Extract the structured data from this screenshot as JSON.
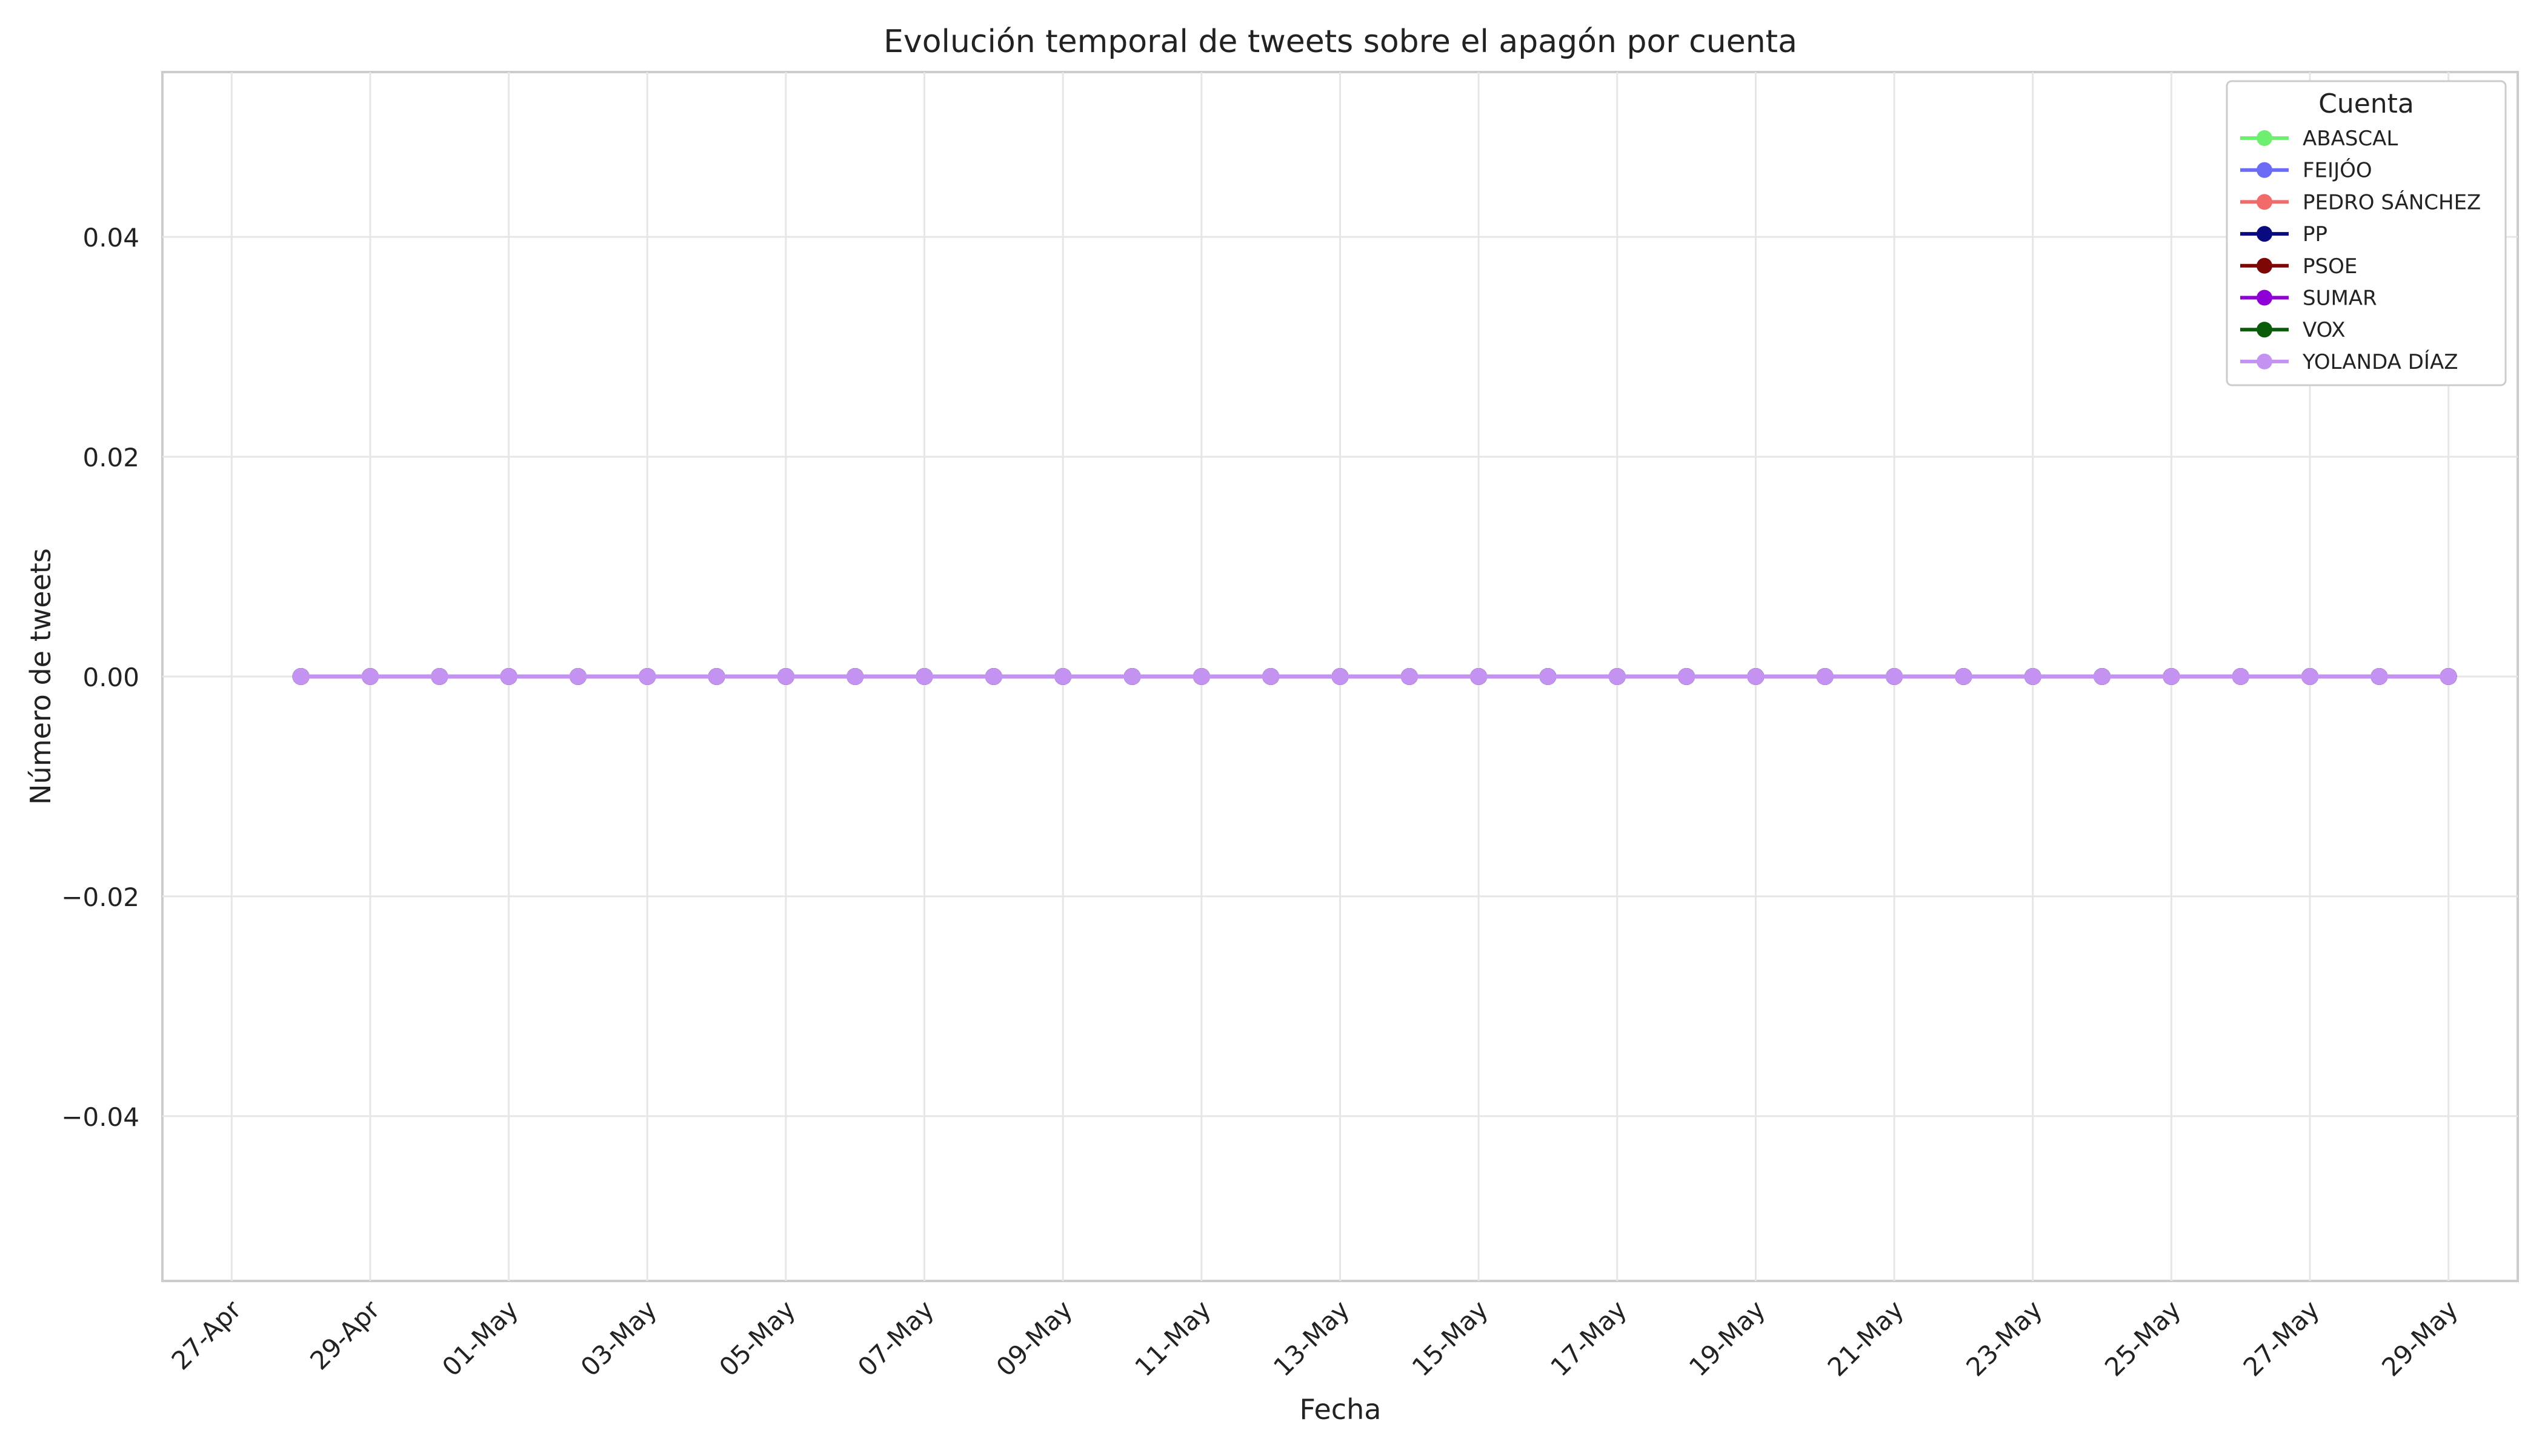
{
  "chart_data": {
    "type": "line",
    "title": "Evolución temporal de tweets sobre el apagón por cuenta",
    "xlabel": "Fecha",
    "ylabel": "Número de tweets",
    "x_tick_labels": [
      "27-Apr",
      "29-Apr",
      "01-May",
      "03-May",
      "05-May",
      "07-May",
      "09-May",
      "11-May",
      "13-May",
      "15-May",
      "17-May",
      "19-May",
      "21-May",
      "23-May",
      "25-May",
      "27-May",
      "29-May"
    ],
    "y_tick_labels": [
      "−0.04",
      "−0.02",
      "0.00",
      "0.02",
      "0.04"
    ],
    "y_ticks": [
      -0.04,
      -0.02,
      0.0,
      0.02,
      0.04
    ],
    "ylim": [
      -0.055,
      0.055
    ],
    "xlim": [
      "2025-04-26",
      "2025-05-30"
    ],
    "grid": true,
    "legend": {
      "title": "Cuenta",
      "placement": "top-right"
    },
    "x": [
      "2025-04-28",
      "2025-04-29",
      "2025-04-30",
      "2025-05-01",
      "2025-05-02",
      "2025-05-03",
      "2025-05-04",
      "2025-05-05",
      "2025-05-06",
      "2025-05-07",
      "2025-05-08",
      "2025-05-09",
      "2025-05-10",
      "2025-05-11",
      "2025-05-12",
      "2025-05-13",
      "2025-05-14",
      "2025-05-15",
      "2025-05-16",
      "2025-05-17",
      "2025-05-18",
      "2025-05-19",
      "2025-05-20",
      "2025-05-21",
      "2025-05-22",
      "2025-05-23",
      "2025-05-24",
      "2025-05-25",
      "2025-05-26",
      "2025-05-27",
      "2025-05-28",
      "2025-05-29"
    ],
    "series": [
      {
        "name": "ABASCAL",
        "color": "#6fef6f",
        "values": [
          0,
          0,
          0,
          0,
          0,
          0,
          0,
          0,
          0,
          0,
          0,
          0,
          0,
          0,
          0,
          0,
          0,
          0,
          0,
          0,
          0,
          0,
          0,
          0,
          0,
          0,
          0,
          0,
          0,
          0,
          0,
          0
        ]
      },
      {
        "name": "FEIJÓO",
        "color": "#6b6bf5",
        "values": [
          0,
          0,
          0,
          0,
          0,
          0,
          0,
          0,
          0,
          0,
          0,
          0,
          0,
          0,
          0,
          0,
          0,
          0,
          0,
          0,
          0,
          0,
          0,
          0,
          0,
          0,
          0,
          0,
          0,
          0,
          0,
          0
        ]
      },
      {
        "name": "PEDRO SÁNCHEZ",
        "color": "#f26b6b",
        "values": [
          0,
          0,
          0,
          0,
          0,
          0,
          0,
          0,
          0,
          0,
          0,
          0,
          0,
          0,
          0,
          0,
          0,
          0,
          0,
          0,
          0,
          0,
          0,
          0,
          0,
          0,
          0,
          0,
          0,
          0,
          0,
          0
        ]
      },
      {
        "name": "PP",
        "color": "#0a0a80",
        "values": [
          0,
          0,
          0,
          0,
          0,
          0,
          0,
          0,
          0,
          0,
          0,
          0,
          0,
          0,
          0,
          0,
          0,
          0,
          0,
          0,
          0,
          0,
          0,
          0,
          0,
          0,
          0,
          0,
          0,
          0,
          0,
          0
        ]
      },
      {
        "name": "PSOE",
        "color": "#7d0606",
        "values": [
          0,
          0,
          0,
          0,
          0,
          0,
          0,
          0,
          0,
          0,
          0,
          0,
          0,
          0,
          0,
          0,
          0,
          0,
          0,
          0,
          0,
          0,
          0,
          0,
          0,
          0,
          0,
          0,
          0,
          0,
          0,
          0
        ]
      },
      {
        "name": "SUMAR",
        "color": "#8f00d6",
        "values": [
          0,
          0,
          0,
          0,
          0,
          0,
          0,
          0,
          0,
          0,
          0,
          0,
          0,
          0,
          0,
          0,
          0,
          0,
          0,
          0,
          0,
          0,
          0,
          0,
          0,
          0,
          0,
          0,
          0,
          0,
          0,
          0
        ]
      },
      {
        "name": "VOX",
        "color": "#0a5c0a",
        "values": [
          0,
          0,
          0,
          0,
          0,
          0,
          0,
          0,
          0,
          0,
          0,
          0,
          0,
          0,
          0,
          0,
          0,
          0,
          0,
          0,
          0,
          0,
          0,
          0,
          0,
          0,
          0,
          0,
          0,
          0,
          0,
          0
        ]
      },
      {
        "name": "YOLANDA DÍAZ",
        "color": "#c493f2",
        "values": [
          0,
          0,
          0,
          0,
          0,
          0,
          0,
          0,
          0,
          0,
          0,
          0,
          0,
          0,
          0,
          0,
          0,
          0,
          0,
          0,
          0,
          0,
          0,
          0,
          0,
          0,
          0,
          0,
          0,
          0,
          0,
          0
        ]
      }
    ]
  }
}
